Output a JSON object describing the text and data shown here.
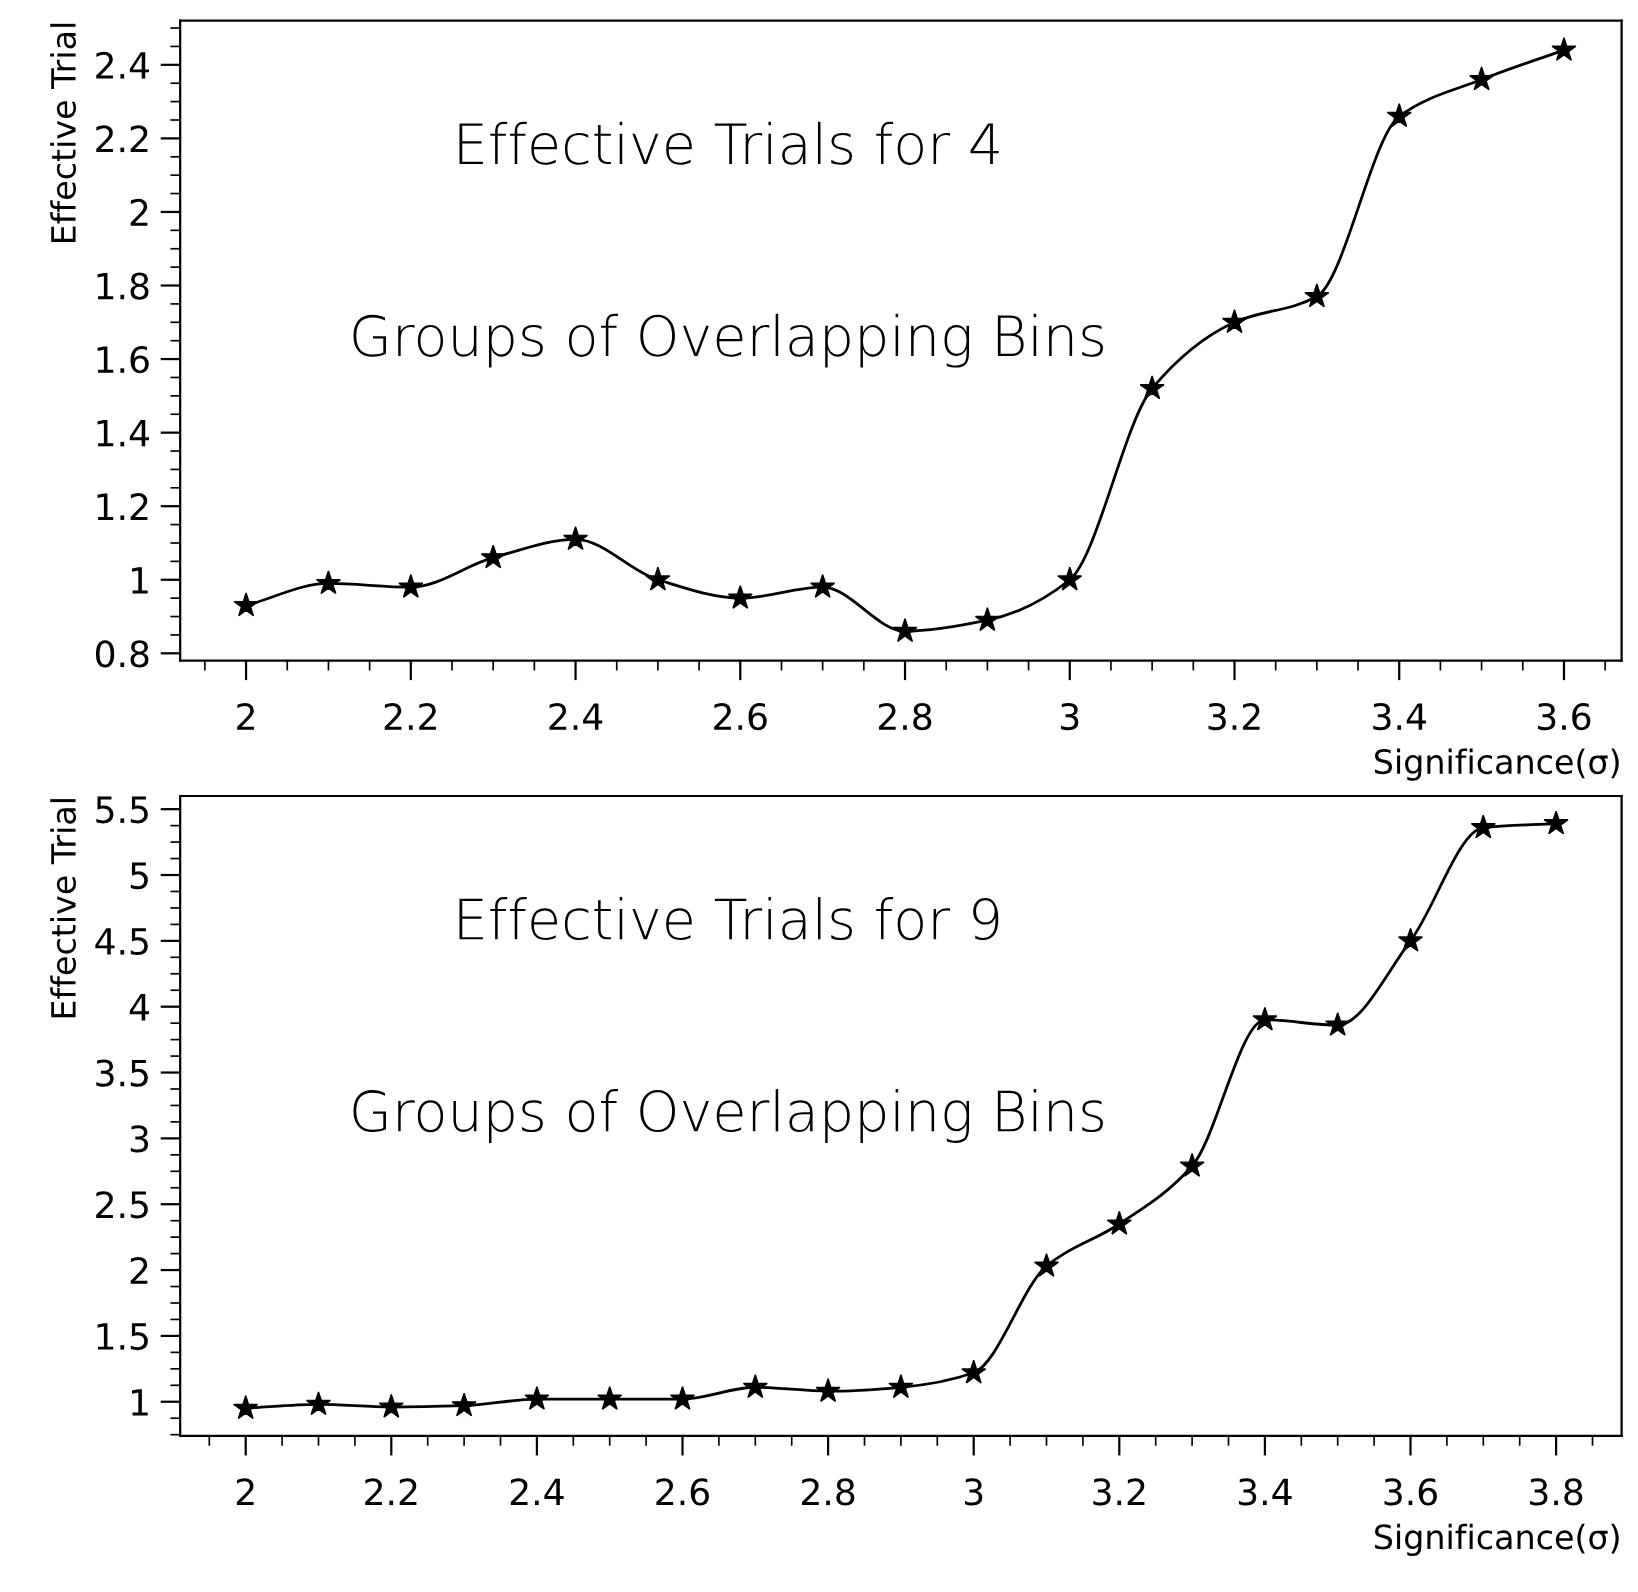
{
  "chart_data": [
    {
      "type": "line",
      "xlabel": "Significance(σ)",
      "ylabel": "Effective Trial",
      "annotations": [
        "Effective Trials for 4",
        "Groups of Overlapping Bins"
      ],
      "marker": "star",
      "line_style": "solid",
      "x": [
        2.0,
        2.1,
        2.2,
        2.3,
        2.4,
        2.5,
        2.6,
        2.7,
        2.8,
        2.9,
        3.0,
        3.1,
        3.2,
        3.3,
        3.4,
        3.5,
        3.6
      ],
      "series": [
        {
          "color": "#000000",
          "values": [
            0.93,
            0.99,
            0.98,
            1.06,
            1.11,
            1.0,
            0.95,
            0.98,
            0.86,
            0.89,
            1.0,
            1.52,
            1.7,
            1.77,
            2.26,
            2.36,
            2.44
          ]
        }
      ],
      "xlim": [
        1.92,
        3.67
      ],
      "ylim": [
        0.78,
        2.52
      ],
      "xticks": [
        2,
        2.2,
        2.4,
        2.6,
        2.8,
        3,
        3.2,
        3.4,
        3.6
      ],
      "yticks": [
        0.8,
        1,
        1.2,
        1.4,
        1.6,
        1.8,
        2,
        2.2,
        2.4
      ]
    },
    {
      "type": "line",
      "xlabel": "Significance(σ)",
      "ylabel": "Effective Trial",
      "annotations": [
        "Effective Trials for 9",
        "Groups of Overlapping Bins"
      ],
      "marker": "star",
      "line_style": "solid",
      "x": [
        2.0,
        2.1,
        2.2,
        2.3,
        2.4,
        2.5,
        2.6,
        2.7,
        2.8,
        2.9,
        3.0,
        3.1,
        3.2,
        3.3,
        3.4,
        3.5,
        3.6,
        3.7,
        3.8
      ],
      "series": [
        {
          "color": "#000000",
          "values": [
            0.95,
            0.98,
            0.96,
            0.97,
            1.02,
            1.02,
            1.02,
            1.11,
            1.08,
            1.11,
            1.22,
            2.03,
            2.35,
            2.79,
            3.9,
            3.86,
            4.5,
            5.36,
            5.39
          ]
        }
      ],
      "xlim": [
        1.91,
        3.89
      ],
      "ylim": [
        0.74,
        5.6
      ],
      "xticks": [
        2,
        2.2,
        2.4,
        2.6,
        2.8,
        3,
        3.2,
        3.4,
        3.6,
        3.8
      ],
      "yticks": [
        1,
        1.5,
        2,
        2.5,
        3,
        3.5,
        4,
        4.5,
        5,
        5.5
      ]
    }
  ]
}
